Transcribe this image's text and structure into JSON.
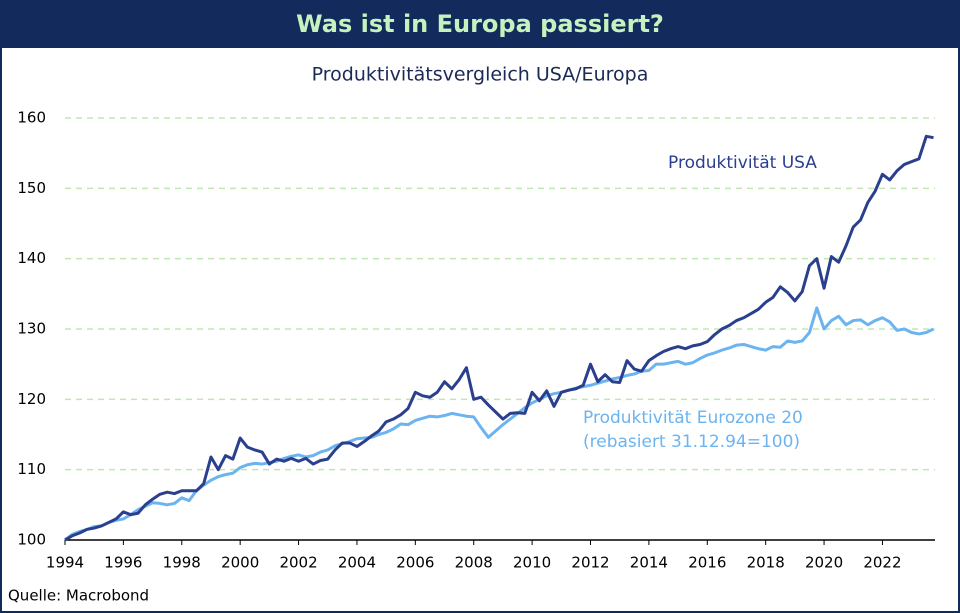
{
  "chart_data": {
    "type": "line",
    "title": "Was ist in Europa passiert?",
    "subtitle": "Produktivitätsvergleich USA/Europa",
    "source": "Quelle: Macrobond",
    "annotations": [
      "Produktivität USA",
      "Produktivität Eurozone 20",
      "(rebasiert 31.12.94=100)"
    ],
    "x": [
      1994,
      1994.25,
      1994.5,
      1994.75,
      1995,
      1995.25,
      1995.5,
      1995.75,
      1996,
      1996.25,
      1996.5,
      1996.75,
      1997,
      1997.25,
      1997.5,
      1997.75,
      1998,
      1998.25,
      1998.5,
      1998.75,
      1999,
      1999.25,
      1999.5,
      1999.75,
      2000,
      2000.25,
      2000.5,
      2000.75,
      2001,
      2001.25,
      2001.5,
      2001.75,
      2002,
      2002.25,
      2002.5,
      2002.75,
      2003,
      2003.25,
      2003.5,
      2003.75,
      2004,
      2004.25,
      2004.5,
      2004.75,
      2005,
      2005.25,
      2005.5,
      2005.75,
      2006,
      2006.25,
      2006.5,
      2006.75,
      2007,
      2007.25,
      2007.5,
      2007.75,
      2008,
      2008.25,
      2008.5,
      2008.75,
      2009,
      2009.25,
      2009.5,
      2009.75,
      2010,
      2010.25,
      2010.5,
      2010.75,
      2011,
      2011.25,
      2011.5,
      2011.75,
      2012,
      2012.25,
      2012.5,
      2012.75,
      2013,
      2013.25,
      2013.5,
      2013.75,
      2014,
      2014.25,
      2014.5,
      2014.75,
      2015,
      2015.25,
      2015.5,
      2015.75,
      2016,
      2016.25,
      2016.5,
      2016.75,
      2017,
      2017.25,
      2017.5,
      2017.75,
      2018,
      2018.25,
      2018.5,
      2018.75,
      2019,
      2019.25,
      2019.5,
      2019.75,
      2020,
      2020.25,
      2020.5,
      2020.75,
      2021,
      2021.25,
      2021.5,
      2021.75,
      2022,
      2022.25,
      2022.5,
      2022.75,
      2023,
      2023.25,
      2023.5,
      2023.75
    ],
    "series": [
      {
        "name": "Produktivität USA",
        "color": "#2b3f8f",
        "values": [
          100,
          100.6,
          101.0,
          101.5,
          101.7,
          102.0,
          102.5,
          103.0,
          104.0,
          103.6,
          103.8,
          105.0,
          105.8,
          106.5,
          106.8,
          106.6,
          107.0,
          107.0,
          107.0,
          108.0,
          111.8,
          110.0,
          112.0,
          111.5,
          114.5,
          113.2,
          112.8,
          112.5,
          110.8,
          111.5,
          111.2,
          111.6,
          111.2,
          111.6,
          110.8,
          111.3,
          111.5,
          112.8,
          113.8,
          113.8,
          113.3,
          114.0,
          114.8,
          115.5,
          116.8,
          117.2,
          117.8,
          118.7,
          121.0,
          120.5,
          120.3,
          121.0,
          122.5,
          121.5,
          122.8,
          124.5,
          120.0,
          120.3,
          119.2,
          118.2,
          117.2,
          118.0,
          118.1,
          118.0,
          121.0,
          119.8,
          121.2,
          119.0,
          121.0,
          121.3,
          121.5,
          122.0,
          125.0,
          122.5,
          123.5,
          122.5,
          122.4,
          125.5,
          124.3,
          124.0,
          125.5,
          126.2,
          126.8,
          127.2,
          127.5,
          127.2,
          127.6,
          127.8,
          128.2,
          129.2,
          130.0,
          130.5,
          131.2,
          131.6,
          132.2,
          132.8,
          133.8,
          134.5,
          136.0,
          135.2,
          134.0,
          135.3,
          139.0,
          140.0,
          135.8,
          140.3,
          139.5,
          141.8,
          144.5,
          145.5,
          148.0,
          149.6,
          152.0,
          151.2,
          152.5,
          153.4,
          153.8,
          154.2,
          157.4,
          157.2
        ]
      },
      {
        "name": "Produktivität Eurozone 20",
        "color": "#6cb4f0",
        "values": [
          100,
          100.8,
          101.2,
          101.5,
          101.9,
          102.0,
          102.5,
          102.8,
          103.0,
          103.6,
          104.3,
          104.8,
          105.3,
          105.2,
          105.0,
          105.2,
          106.0,
          105.6,
          107.0,
          107.8,
          108.5,
          109.0,
          109.3,
          109.5,
          110.3,
          110.7,
          110.9,
          110.8,
          111.0,
          111.2,
          111.6,
          111.9,
          112.1,
          111.8,
          112.0,
          112.5,
          112.8,
          113.4,
          113.7,
          114.0,
          114.4,
          114.5,
          114.6,
          115.0,
          115.3,
          115.8,
          116.5,
          116.4,
          117.0,
          117.3,
          117.6,
          117.5,
          117.7,
          118.0,
          117.8,
          117.6,
          117.5,
          116.0,
          114.6,
          115.5,
          116.4,
          117.2,
          118.0,
          118.8,
          119.5,
          120.0,
          120.5,
          120.8,
          121.0,
          121.3,
          121.6,
          121.8,
          122.0,
          122.3,
          122.6,
          122.9,
          123.1,
          123.4,
          123.6,
          124.0,
          124.1,
          125.0,
          125.0,
          125.2,
          125.4,
          125.0,
          125.2,
          125.8,
          126.3,
          126.6,
          127.0,
          127.3,
          127.7,
          127.8,
          127.5,
          127.2,
          127.0,
          127.5,
          127.4,
          128.3,
          128.1,
          128.3,
          129.5,
          133.0,
          130.0,
          131.2,
          131.8,
          130.6,
          131.2,
          131.3,
          130.6,
          131.2,
          131.6,
          131.0,
          129.8,
          130.0,
          129.5,
          129.3,
          129.5,
          130.0
        ]
      }
    ],
    "xlim": [
      1994,
      2023.8
    ],
    "xticks": [
      1994,
      1996,
      1998,
      2000,
      2002,
      2004,
      2006,
      2008,
      2010,
      2012,
      2014,
      2016,
      2018,
      2020,
      2022
    ],
    "ylim": [
      100,
      160
    ],
    "yticks": [
      100,
      110,
      120,
      130,
      140,
      150,
      160
    ],
    "grid": true
  }
}
